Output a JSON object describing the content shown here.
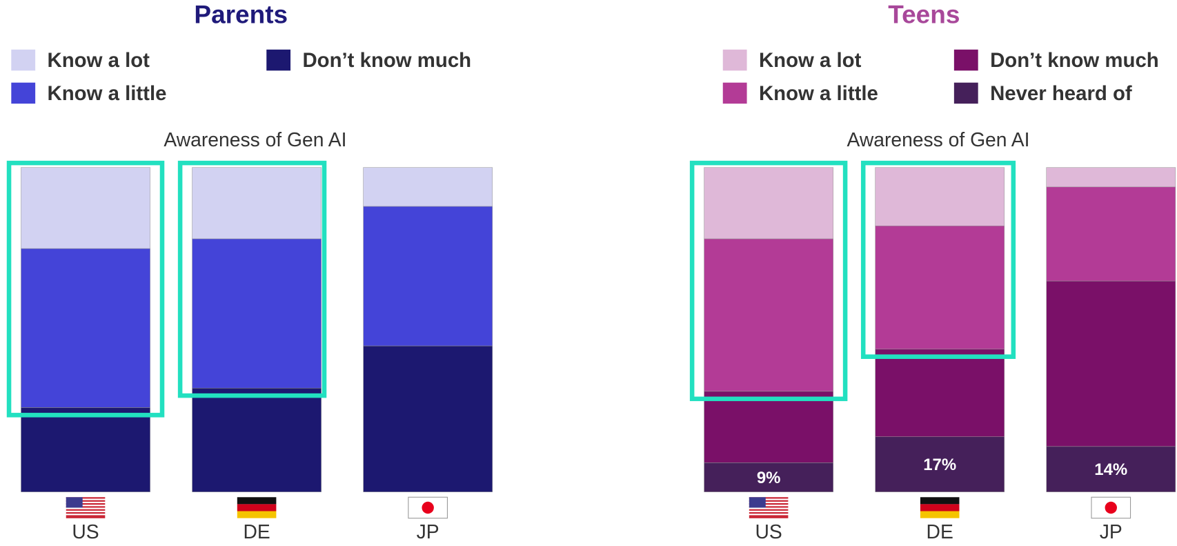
{
  "chart_data": [
    {
      "type": "bar",
      "stacked": true,
      "title": "Parents",
      "title_color": "#1f1a7a",
      "subtitle": "Awareness of Gen AI",
      "categories": [
        "US",
        "DE",
        "JP"
      ],
      "series": [
        {
          "name": "Know a lot",
          "color": "#d2d2f2",
          "values": [
            25,
            22,
            12
          ]
        },
        {
          "name": "Know a little",
          "color": "#4444d8",
          "values": [
            49,
            46,
            43
          ]
        },
        {
          "name": "Don’t know much",
          "color": "#1c1870",
          "values": [
            26,
            32,
            45
          ]
        }
      ]
    },
    {
      "type": "bar",
      "stacked": true,
      "title": "Teens",
      "title_color": "#a8489a",
      "subtitle": "Awareness of Gen AI",
      "categories": [
        "US",
        "DE",
        "JP"
      ],
      "series": [
        {
          "name": "Know a lot",
          "color": "#dfb8d8",
          "values": [
            22,
            18,
            6
          ]
        },
        {
          "name": "Know a little",
          "color": "#b33b96",
          "values": [
            47,
            38,
            29
          ]
        },
        {
          "name": "Don’t know much",
          "color": "#7a1068",
          "values": [
            22,
            27,
            51
          ]
        },
        {
          "name": "Never heard of",
          "color": "#45205a",
          "values": [
            9,
            17,
            14
          ],
          "value_labels": [
            "9%",
            "17%",
            "14%"
          ]
        }
      ]
    }
  ]
}
